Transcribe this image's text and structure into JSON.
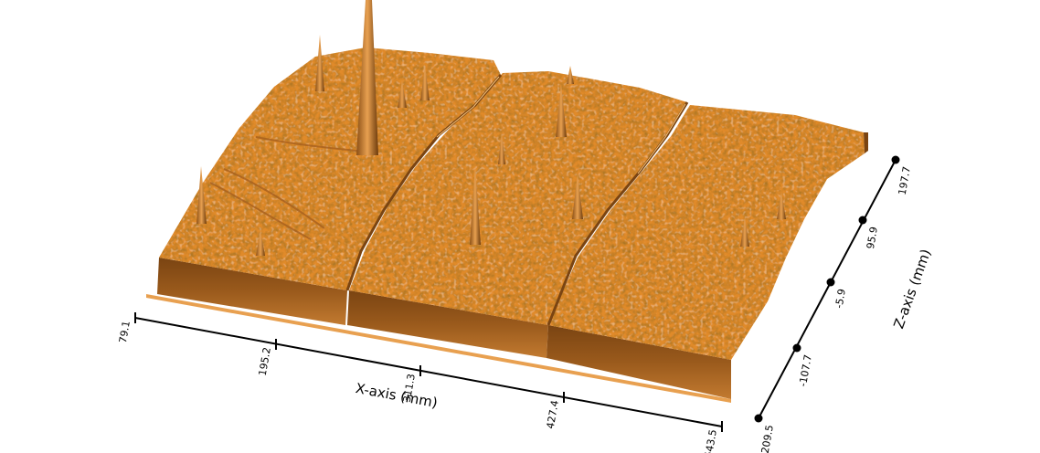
{
  "x_axis": {
    "title": "X-axis (mm)",
    "ticks": [
      "79.1",
      "195.2",
      "311.3",
      "427.4",
      "543.5"
    ]
  },
  "z_axis": {
    "title": "Z-axis (mm)",
    "ticks": [
      "-209.5",
      "-107.7",
      "-5.9",
      "95.9",
      "197.7"
    ]
  },
  "surface": {
    "color": "#e08a2c",
    "shadow_color": "#6b3a0c",
    "highlight_color": "#f4b060",
    "base_color": "#c8782a"
  }
}
